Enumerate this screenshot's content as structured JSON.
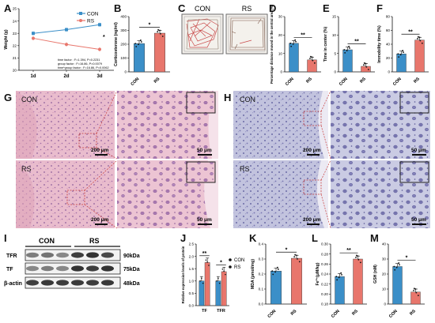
{
  "panel_letters": [
    "A",
    "B",
    "C",
    "D",
    "E",
    "F",
    "G",
    "H",
    "I",
    "J",
    "K",
    "L",
    "M"
  ],
  "colors": {
    "con": "#3b8fc8",
    "rs": "#e8766c",
    "he_tissue": "#e7b7c9",
    "nissl_tissue": "#b7b8d8",
    "outline": "#c63b3b",
    "axis": "#111111"
  },
  "panelA": {
    "legend": [
      {
        "label": "CON"
      },
      {
        "label": "RS"
      }
    ],
    "stats": [
      "time factor : F=1.394, P=0.2231",
      "group factor : F=16.86, P=0.0079",
      "time*group factor : F=16.86, P=0.0062"
    ]
  },
  "panelC": {
    "labels": [
      "CON",
      "RS"
    ]
  },
  "panelG": {
    "row_labels": [
      "CON",
      "RS"
    ],
    "scalebars": [
      "200 μm",
      "50 μm",
      "200 μm",
      "50 μm"
    ]
  },
  "panelH": {
    "row_labels": [
      "CON",
      "RS"
    ],
    "scalebars": [
      "200 μm",
      "50 μm",
      "200 μm",
      "50 μm"
    ]
  },
  "panelI": {
    "groups": [
      "CON",
      "RS"
    ],
    "bands": [
      {
        "name": "TFR",
        "size": "90kDa"
      },
      {
        "name": "TF",
        "size": "75kDa"
      },
      {
        "name": "β-actin",
        "size": "48kDa"
      }
    ]
  },
  "chart_data": [
    {
      "panel": "A",
      "type": "line",
      "xlabel": "",
      "ylabel": "Weight (g)",
      "categories": [
        "1d",
        "2d",
        "3d"
      ],
      "ylim": [
        20,
        25
      ],
      "yticks": [
        20,
        21,
        22,
        23,
        24,
        25
      ],
      "series": [
        {
          "name": "CON",
          "values": [
            23.0,
            23.3,
            23.7
          ]
        },
        {
          "name": "RS",
          "values": [
            22.6,
            22.1,
            21.7
          ]
        }
      ]
    },
    {
      "panel": "B",
      "type": "bar",
      "ylabel": "Corticosterone (ng/ml)",
      "categories": [
        "CON",
        "RS"
      ],
      "values": [
        205,
        280
      ],
      "ylim": [
        0,
        400
      ],
      "yticks": [
        0,
        100,
        200,
        300,
        400
      ],
      "significance": "*"
    },
    {
      "panel": "D",
      "type": "bar",
      "ylabel": "Percentage distance moved in the central area (%)",
      "categories": [
        "CON",
        "RS"
      ],
      "values": [
        15.5,
        6.5
      ],
      "ylim": [
        0,
        30
      ],
      "yticks": [
        0,
        10,
        20,
        30
      ],
      "significance": "**"
    },
    {
      "panel": "E",
      "type": "bar",
      "ylabel": "Time in center (%)",
      "categories": [
        "CON",
        "RS"
      ],
      "values": [
        6,
        1.5
      ],
      "ylim": [
        0,
        15
      ],
      "yticks": [
        0,
        5,
        10,
        15
      ],
      "significance": "**"
    },
    {
      "panel": "F",
      "type": "bar",
      "ylabel": "Immobility time (%)",
      "categories": [
        "CON",
        "RS"
      ],
      "values": [
        26,
        46
      ],
      "ylim": [
        0,
        80
      ],
      "yticks": [
        0,
        20,
        40,
        60,
        80
      ],
      "significance": "**"
    },
    {
      "panel": "J",
      "type": "bar",
      "ylabel": "Relative expression levels of protein",
      "categories": [
        "TF",
        "TFR"
      ],
      "series": [
        {
          "name": "CON",
          "values": [
            1.0,
            1.0
          ]
        },
        {
          "name": "RS",
          "values": [
            1.75,
            1.38
          ]
        }
      ],
      "ylim": [
        0,
        2.5
      ],
      "yticks": [
        0.0,
        0.5,
        1.0,
        1.5,
        2.0,
        2.5
      ],
      "significance": [
        "**",
        "*"
      ]
    },
    {
      "panel": "K",
      "type": "bar",
      "ylabel": "MDA (pmol/mg)",
      "categories": [
        "CON",
        "RS"
      ],
      "values": [
        0.22,
        0.305
      ],
      "ylim": [
        0,
        0.4
      ],
      "yticks": [
        0.0,
        0.1,
        0.2,
        0.3,
        0.4
      ],
      "significance": "*"
    },
    {
      "panel": "L",
      "type": "bar",
      "ylabel": "Fe²⁺(μM/kg)",
      "categories": [
        "CON",
        "RS"
      ],
      "values": [
        0.235,
        0.27
      ],
      "ylim": [
        0.18,
        0.3
      ],
      "yticks": [
        0.18,
        0.2,
        0.22,
        0.24,
        0.26,
        0.28,
        0.3
      ],
      "significance": "**"
    },
    {
      "panel": "M",
      "type": "bar",
      "ylabel": "GSH (nM)",
      "categories": [
        "CON",
        "RS"
      ],
      "values": [
        25,
        8
      ],
      "ylim": [
        0,
        40
      ],
      "yticks": [
        0,
        10,
        20,
        30,
        40
      ],
      "significance": "*"
    }
  ]
}
